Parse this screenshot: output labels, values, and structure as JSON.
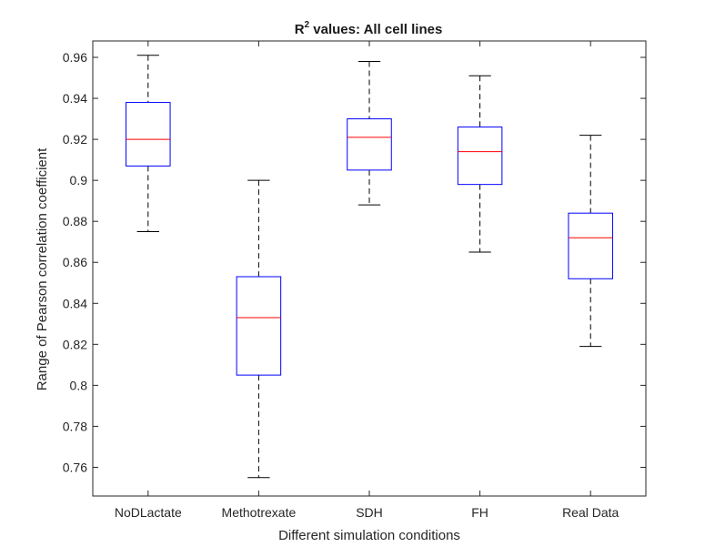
{
  "chart_data": {
    "type": "box",
    "title": {
      "main": "R",
      "sup": "2",
      "rest": " values: All cell lines"
    },
    "xlabel": "Different simulation conditions",
    "ylabel": "Range of Pearson correlation coefficient",
    "ylim": [
      0.746,
      0.968
    ],
    "yticks": [
      0.76,
      0.78,
      0.8,
      0.82,
      0.84,
      0.86,
      0.88,
      0.9,
      0.92,
      0.94,
      0.96
    ],
    "ytick_labels": [
      "0.76",
      "0.78",
      "0.8",
      "0.82",
      "0.84",
      "0.86",
      "0.88",
      "0.9",
      "0.92",
      "0.94",
      "0.96"
    ],
    "categories": [
      "NoDLactate",
      "Methotrexate",
      "SDH",
      "FH",
      "Real Data"
    ],
    "boxes": [
      {
        "whisker_low": 0.875,
        "q1": 0.907,
        "median": 0.92,
        "q3": 0.938,
        "whisker_high": 0.961
      },
      {
        "whisker_low": 0.755,
        "q1": 0.805,
        "median": 0.833,
        "q3": 0.853,
        "whisker_high": 0.9
      },
      {
        "whisker_low": 0.888,
        "q1": 0.905,
        "median": 0.921,
        "q3": 0.93,
        "whisker_high": 0.958
      },
      {
        "whisker_low": 0.865,
        "q1": 0.898,
        "median": 0.914,
        "q3": 0.926,
        "whisker_high": 0.951
      },
      {
        "whisker_low": 0.819,
        "q1": 0.852,
        "median": 0.872,
        "q3": 0.884,
        "whisker_high": 0.922
      }
    ],
    "colors": {
      "box": "#0000ff",
      "median": "#ff0000",
      "whisker": "#000000",
      "axis": "#262626"
    },
    "grid": false,
    "legend": "none"
  }
}
